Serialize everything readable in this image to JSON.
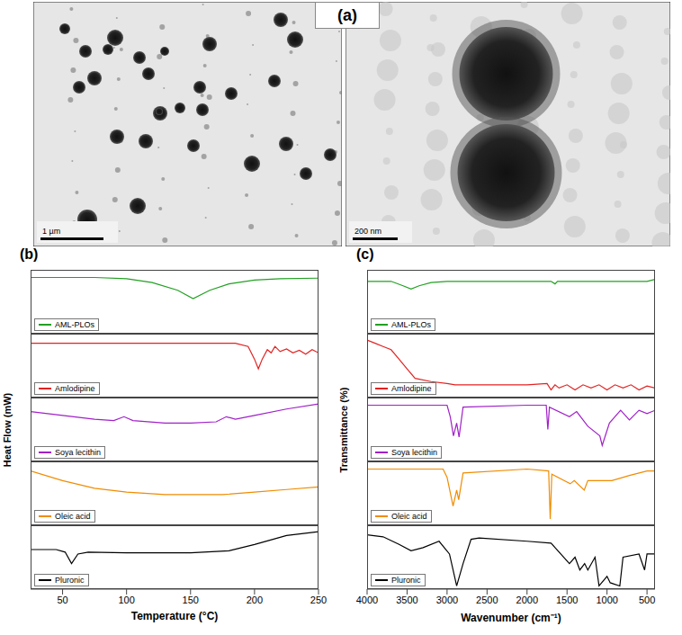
{
  "panel_a": {
    "label": "(a)",
    "images": [
      {
        "scale_bar": "1 µm"
      },
      {
        "scale_bar": "200 nm"
      }
    ]
  },
  "chart_data": [
    {
      "label": "(b)",
      "type": "line",
      "x_label": "Temperature (°C)",
      "y_label": "Heat Flow (mW)",
      "xlim": [
        25,
        250
      ],
      "xticks": [
        50,
        100,
        150,
        200,
        250
      ],
      "ylim": [
        0,
        100
      ],
      "tick_labels": "x",
      "series": [
        {
          "name": "AML-PLOs",
          "color": "#22a022",
          "x": [
            25,
            50,
            75,
            100,
            120,
            140,
            152,
            165,
            180,
            200,
            220,
            250
          ],
          "values": [
            88,
            88,
            88,
            86,
            80,
            68,
            55,
            68,
            78,
            84,
            86,
            87
          ]
        },
        {
          "name": "Amlodipine",
          "color": "#e32222",
          "x": [
            25,
            100,
            185,
            195,
            200,
            203,
            206,
            210,
            213,
            216,
            220,
            225,
            230,
            235,
            240,
            245,
            250
          ],
          "values": [
            85,
            85,
            85,
            80,
            60,
            45,
            60,
            75,
            70,
            80,
            72,
            76,
            70,
            74,
            68,
            75,
            70
          ]
        },
        {
          "name": "Soya lecithin",
          "color": "#a020c8",
          "x": [
            25,
            50,
            75,
            90,
            98,
            105,
            130,
            150,
            170,
            178,
            185,
            200,
            225,
            250
          ],
          "values": [
            78,
            72,
            66,
            64,
            70,
            64,
            60,
            60,
            62,
            70,
            66,
            72,
            82,
            90
          ]
        },
        {
          "name": "Oleic acid",
          "color": "#f08c00",
          "x": [
            25,
            50,
            75,
            100,
            130,
            150,
            175,
            200,
            225,
            250
          ],
          "values": [
            85,
            70,
            58,
            52,
            48,
            48,
            48,
            52,
            56,
            60
          ]
        },
        {
          "name": "Pluronic",
          "color": "#000000",
          "x": [
            25,
            45,
            52,
            57,
            62,
            70,
            100,
            150,
            180,
            200,
            225,
            250
          ],
          "values": [
            62,
            62,
            58,
            40,
            55,
            58,
            57,
            57,
            60,
            70,
            84,
            90
          ]
        }
      ]
    },
    {
      "label": "(c)",
      "type": "line",
      "x_label": "Wavenumber (cm⁻¹)",
      "y_label": "Transmittance (%)",
      "xlim": [
        4000,
        400
      ],
      "xticks": [
        4000,
        3500,
        3000,
        2500,
        2000,
        1500,
        1000,
        500
      ],
      "ylim": [
        0,
        100
      ],
      "tick_labels": "x",
      "series": [
        {
          "name": "AML-PLOs",
          "color": "#22a022",
          "x": [
            4000,
            3700,
            3550,
            3450,
            3350,
            3200,
            3000,
            2000,
            1700,
            1650,
            1620,
            1000,
            500,
            400
          ],
          "values": [
            82,
            82,
            75,
            70,
            75,
            80,
            82,
            82,
            82,
            78,
            82,
            82,
            82,
            85
          ]
        },
        {
          "name": "Amlodipine",
          "color": "#e32222",
          "x": [
            4000,
            3900,
            3800,
            3700,
            3600,
            3500,
            3400,
            3200,
            3000,
            2900,
            2500,
            2000,
            1750,
            1700,
            1650,
            1600,
            1500,
            1400,
            1300,
            1200,
            1100,
            1000,
            900,
            800,
            700,
            600,
            500,
            400
          ],
          "values": [
            90,
            85,
            80,
            75,
            60,
            45,
            30,
            25,
            22,
            20,
            20,
            20,
            22,
            12,
            20,
            15,
            20,
            12,
            20,
            15,
            20,
            12,
            20,
            15,
            20,
            12,
            18,
            15
          ]
        },
        {
          "name": "Soya lecithin",
          "color": "#a020c8",
          "x": [
            4000,
            3000,
            2960,
            2920,
            2880,
            2850,
            2800,
            2000,
            1760,
            1740,
            1720,
            1470,
            1380,
            1240,
            1090,
            1060,
            970,
            830,
            720,
            600,
            500,
            400
          ],
          "values": [
            88,
            88,
            70,
            40,
            60,
            38,
            85,
            88,
            88,
            50,
            85,
            70,
            78,
            55,
            40,
            25,
            60,
            80,
            65,
            80,
            75,
            80
          ]
        },
        {
          "name": "Oleic acid",
          "color": "#f08c00",
          "x": [
            4000,
            3050,
            3000,
            2925,
            2880,
            2855,
            2800,
            2000,
            1730,
            1710,
            1690,
            1460,
            1410,
            1285,
            1240,
            940,
            720,
            500,
            400
          ],
          "values": [
            88,
            88,
            75,
            30,
            55,
            40,
            82,
            88,
            85,
            10,
            80,
            65,
            70,
            55,
            70,
            70,
            78,
            85,
            85
          ]
        },
        {
          "name": "Pluronic",
          "color": "#000000",
          "x": [
            4000,
            3800,
            3600,
            3450,
            3300,
            3100,
            2970,
            2880,
            2800,
            2700,
            2600,
            2000,
            1700,
            1470,
            1400,
            1340,
            1280,
            1240,
            1150,
            1100,
            1000,
            960,
            840,
            800,
            600,
            530,
            500,
            400
          ],
          "values": [
            85,
            82,
            70,
            60,
            65,
            75,
            55,
            5,
            40,
            78,
            80,
            75,
            72,
            40,
            50,
            30,
            40,
            30,
            50,
            5,
            20,
            10,
            5,
            50,
            55,
            30,
            55,
            55
          ]
        }
      ]
    }
  ]
}
